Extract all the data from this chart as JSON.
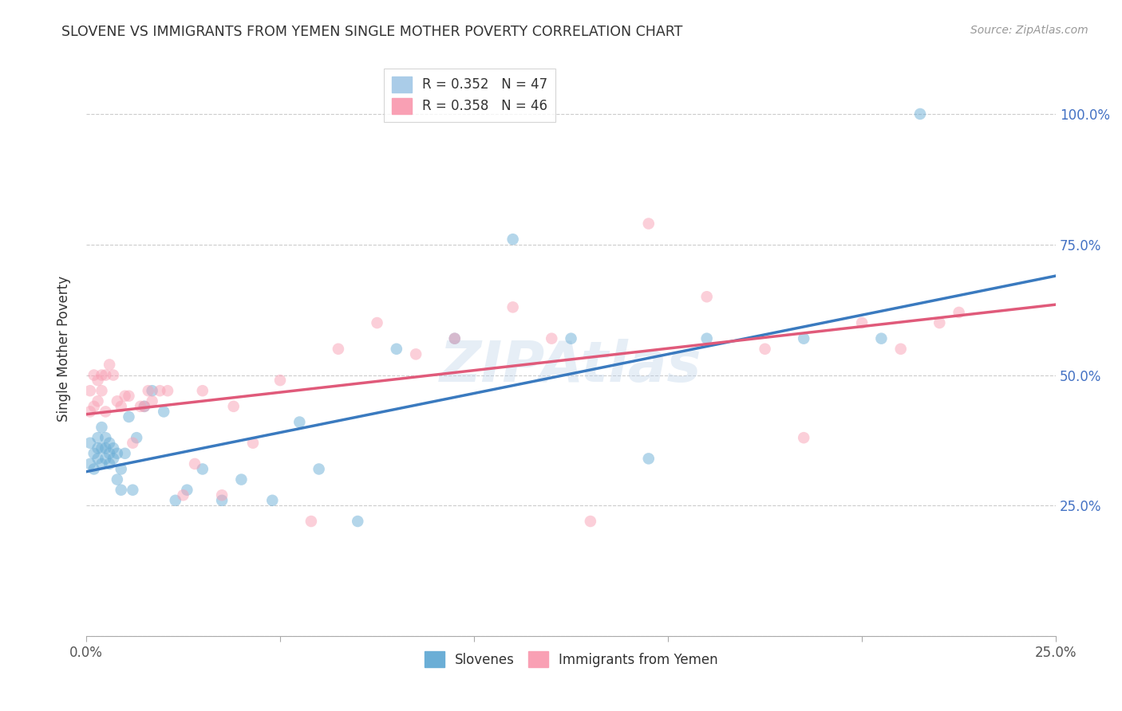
{
  "title": "SLOVENE VS IMMIGRANTS FROM YEMEN SINGLE MOTHER POVERTY CORRELATION CHART",
  "source": "Source: ZipAtlas.com",
  "xlabel": "",
  "ylabel": "Single Mother Poverty",
  "xlim": [
    0.0,
    0.25
  ],
  "ylim": [
    0.0,
    1.1
  ],
  "yticks": [
    0.0,
    0.25,
    0.5,
    0.75,
    1.0
  ],
  "ytick_labels": [
    "",
    "25.0%",
    "50.0%",
    "75.0%",
    "100.0%"
  ],
  "xticks": [
    0.0,
    0.05,
    0.1,
    0.15,
    0.2,
    0.25
  ],
  "xtick_labels": [
    "0.0%",
    "",
    "",
    "",
    "",
    "25.0%"
  ],
  "legend_entries": [
    {
      "label": "R = 0.352   N = 47",
      "color": "#6baed6"
    },
    {
      "label": "R = 0.358   N = 46",
      "color": "#f9a0b4"
    }
  ],
  "slovene_color": "#6baed6",
  "yemen_color": "#f9a0b4",
  "slovene_line_color": "#3a7abf",
  "yemen_line_color": "#e05a7a",
  "watermark": "ZIPAtlas",
  "slovene_x": [
    0.001,
    0.001,
    0.002,
    0.002,
    0.003,
    0.003,
    0.003,
    0.004,
    0.004,
    0.004,
    0.005,
    0.005,
    0.005,
    0.006,
    0.006,
    0.006,
    0.007,
    0.007,
    0.008,
    0.008,
    0.009,
    0.009,
    0.01,
    0.011,
    0.012,
    0.013,
    0.015,
    0.017,
    0.02,
    0.023,
    0.026,
    0.03,
    0.035,
    0.04,
    0.048,
    0.055,
    0.06,
    0.07,
    0.08,
    0.095,
    0.11,
    0.125,
    0.145,
    0.16,
    0.185,
    0.205,
    0.215
  ],
  "slovene_y": [
    0.33,
    0.37,
    0.35,
    0.32,
    0.34,
    0.36,
    0.38,
    0.33,
    0.36,
    0.4,
    0.34,
    0.36,
    0.38,
    0.33,
    0.35,
    0.37,
    0.34,
    0.36,
    0.3,
    0.35,
    0.28,
    0.32,
    0.35,
    0.42,
    0.28,
    0.38,
    0.44,
    0.47,
    0.43,
    0.26,
    0.28,
    0.32,
    0.26,
    0.3,
    0.26,
    0.41,
    0.32,
    0.22,
    0.55,
    0.57,
    0.76,
    0.57,
    0.34,
    0.57,
    0.57,
    0.57,
    1.0
  ],
  "yemen_x": [
    0.001,
    0.001,
    0.002,
    0.002,
    0.003,
    0.003,
    0.004,
    0.004,
    0.005,
    0.005,
    0.006,
    0.007,
    0.008,
    0.009,
    0.01,
    0.011,
    0.012,
    0.014,
    0.015,
    0.016,
    0.017,
    0.019,
    0.021,
    0.025,
    0.028,
    0.03,
    0.035,
    0.038,
    0.043,
    0.05,
    0.058,
    0.065,
    0.075,
    0.085,
    0.095,
    0.11,
    0.12,
    0.13,
    0.145,
    0.16,
    0.175,
    0.185,
    0.2,
    0.21,
    0.22,
    0.225
  ],
  "yemen_y": [
    0.43,
    0.47,
    0.44,
    0.5,
    0.45,
    0.49,
    0.47,
    0.5,
    0.43,
    0.5,
    0.52,
    0.5,
    0.45,
    0.44,
    0.46,
    0.46,
    0.37,
    0.44,
    0.44,
    0.47,
    0.45,
    0.47,
    0.47,
    0.27,
    0.33,
    0.47,
    0.27,
    0.44,
    0.37,
    0.49,
    0.22,
    0.55,
    0.6,
    0.54,
    0.57,
    0.63,
    0.57,
    0.22,
    0.79,
    0.65,
    0.55,
    0.38,
    0.6,
    0.55,
    0.6,
    0.62
  ],
  "slovene_line_x0": 0.0,
  "slovene_line_y0": 0.315,
  "slovene_line_x1": 0.25,
  "slovene_line_y1": 0.69,
  "yemen_line_x0": 0.0,
  "yemen_line_y0": 0.425,
  "yemen_line_x1": 0.25,
  "yemen_line_y1": 0.635
}
